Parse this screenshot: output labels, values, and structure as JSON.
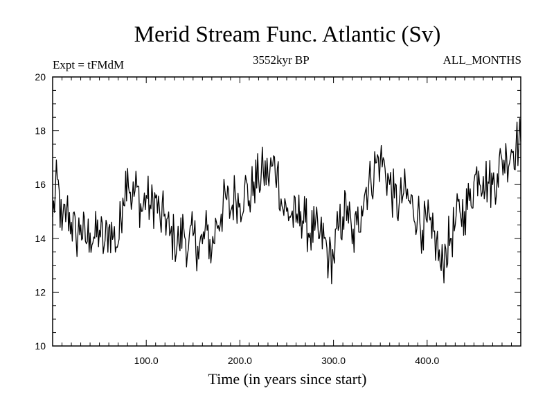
{
  "chart_data": {
    "type": "line",
    "title": "Merid Stream Func. Atlantic (Sv)",
    "subtitle": "3552kyr BP",
    "experiment_label": "Expt = tFMdM",
    "period_label": "ALL_MONTHS",
    "xlabel": "Time (in years since start)",
    "ylabel": "",
    "xlim": [
      0,
      500
    ],
    "ylim": [
      10,
      20
    ],
    "xticks_major": [
      100,
      200,
      300,
      400
    ],
    "xtick_labels": [
      "100.0",
      "200.0",
      "300.0",
      "400.0"
    ],
    "yticks_major": [
      10,
      12,
      14,
      16,
      18,
      20
    ],
    "ytick_labels": [
      "10",
      "12",
      "14",
      "16",
      "18",
      "20"
    ],
    "grid": false,
    "series": [
      {
        "name": "Merid Stream Func. Atlantic",
        "x": [
          0,
          5,
          10,
          15,
          20,
          25,
          30,
          35,
          40,
          45,
          50,
          55,
          60,
          65,
          70,
          75,
          80,
          85,
          90,
          95,
          100,
          105,
          110,
          115,
          120,
          125,
          130,
          135,
          140,
          145,
          150,
          155,
          160,
          165,
          170,
          175,
          180,
          185,
          190,
          195,
          200,
          205,
          210,
          215,
          220,
          225,
          230,
          235,
          240,
          245,
          250,
          255,
          260,
          265,
          270,
          275,
          280,
          285,
          290,
          295,
          300,
          305,
          310,
          315,
          320,
          325,
          330,
          335,
          340,
          345,
          350,
          355,
          360,
          365,
          370,
          375,
          380,
          385,
          390,
          395,
          400,
          405,
          410,
          415,
          420,
          425,
          430,
          435,
          440,
          445,
          450,
          455,
          460,
          465,
          470,
          475,
          480,
          485,
          490,
          495,
          500
        ],
        "values": [
          14.8,
          16.2,
          14.3,
          15.1,
          14.6,
          14.0,
          14.5,
          13.9,
          14.2,
          14.0,
          14.3,
          13.7,
          14.4,
          14.1,
          13.8,
          15.5,
          16.6,
          15.4,
          15.9,
          15.0,
          15.6,
          15.1,
          15.5,
          14.6,
          14.9,
          14.1,
          14.0,
          13.8,
          14.4,
          13.6,
          14.1,
          13.7,
          13.8,
          14.3,
          13.5,
          14.6,
          14.9,
          15.5,
          15.0,
          15.7,
          15.3,
          15.9,
          15.4,
          16.1,
          16.2,
          16.5,
          16.3,
          16.7,
          16.6,
          15.2,
          15.0,
          14.9,
          14.6,
          15.0,
          14.6,
          14.2,
          14.3,
          14.0,
          14.0,
          13.2,
          13.3,
          14.3,
          14.8,
          15.2,
          13.8,
          14.5,
          15.2,
          15.9,
          16.1,
          16.8,
          16.9,
          16.6,
          16.0,
          15.5,
          15.2,
          15.7,
          15.4,
          15.1,
          15.0,
          14.3,
          14.6,
          14.0,
          13.9,
          12.8,
          13.6,
          14.0,
          14.5,
          15.0,
          15.0,
          15.4,
          16.1,
          16.5,
          16.3,
          16.1,
          16.0,
          16.4,
          16.9,
          17.0,
          17.3,
          17.5,
          17.6
        ]
      }
    ]
  }
}
